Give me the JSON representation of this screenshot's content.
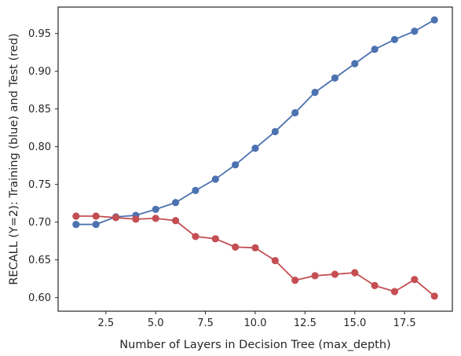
{
  "chart_data": {
    "type": "line",
    "title": "",
    "xlabel": "Number of Layers in Decision Tree (max_depth)",
    "ylabel": "RECALL (Y=2): Training (blue) and Test (red)",
    "xlim": [
      0.1,
      19.9
    ],
    "ylim": [
      0.582,
      0.985
    ],
    "xticks": [
      2.5,
      5.0,
      7.5,
      10.0,
      12.5,
      15.0,
      17.5
    ],
    "xtick_labels": [
      "2.5",
      "5.0",
      "7.5",
      "10.0",
      "12.5",
      "15.0",
      "17.5"
    ],
    "yticks": [
      0.6,
      0.65,
      0.7,
      0.75,
      0.8,
      0.85,
      0.9,
      0.95
    ],
    "ytick_labels": [
      "0.60",
      "0.65",
      "0.70",
      "0.75",
      "0.80",
      "0.85",
      "0.90",
      "0.95"
    ],
    "grid": false,
    "x": [
      1,
      2,
      3,
      4,
      5,
      6,
      7,
      8,
      9,
      10,
      11,
      12,
      13,
      14,
      15,
      16,
      17,
      18,
      19
    ],
    "series": [
      {
        "color": "#4c72b0",
        "values": [
          0.697,
          0.697,
          0.707,
          0.709,
          0.717,
          0.726,
          0.742,
          0.757,
          0.776,
          0.798,
          0.82,
          0.845,
          0.872,
          0.891,
          0.91,
          0.929,
          0.942,
          0.953,
          0.968
        ]
      },
      {
        "color": "#c44e52",
        "values": [
          0.708,
          0.708,
          0.706,
          0.704,
          0.705,
          0.702,
          0.681,
          0.678,
          0.667,
          0.666,
          0.649,
          0.623,
          0.629,
          0.631,
          0.633,
          0.616,
          0.608,
          0.624,
          0.602
        ]
      }
    ]
  }
}
